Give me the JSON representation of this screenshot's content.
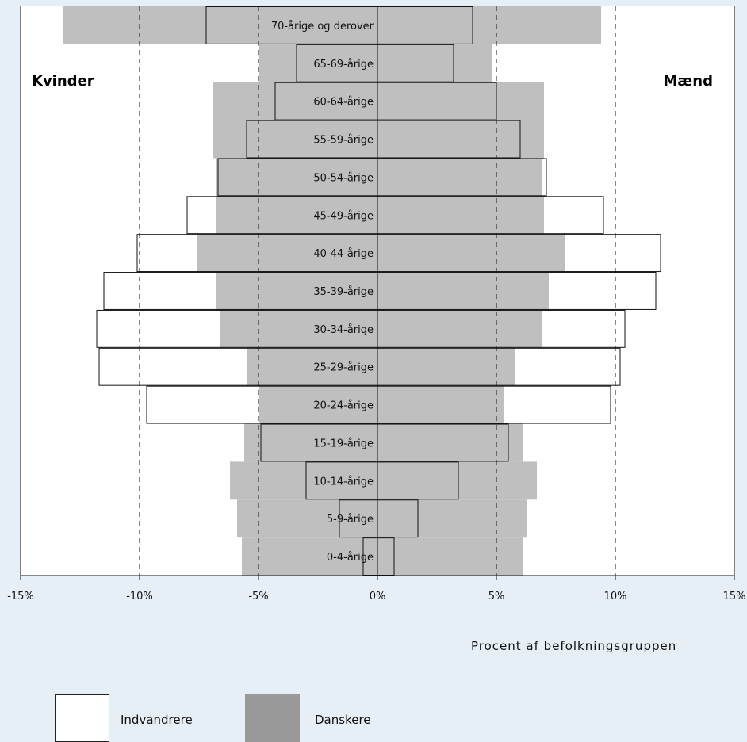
{
  "chart_data": {
    "type": "bar",
    "orientation": "horizontal",
    "layout": "population-pyramid",
    "categories": [
      "0-4-årige",
      "5-9-årige",
      "10-14-årige",
      "15-19-årige",
      "20-24-årige",
      "25-29-årige",
      "30-34-årige",
      "35-39-årige",
      "40-44-årige",
      "45-49-årige",
      "50-54-årige",
      "55-59-årige",
      "60-64-årige",
      "65-69-årige",
      "70-årige og derover"
    ],
    "series": [
      {
        "name": "Danskere",
        "color": "#bfbfbf",
        "women": [
          5.7,
          5.9,
          6.2,
          5.6,
          5.0,
          5.5,
          6.6,
          6.8,
          7.6,
          6.8,
          6.8,
          6.9,
          6.9,
          5.0,
          13.2
        ],
        "men": [
          6.1,
          6.3,
          6.7,
          6.1,
          5.3,
          5.8,
          6.9,
          7.2,
          7.9,
          7.0,
          6.9,
          7.0,
          7.0,
          4.8,
          9.4
        ]
      },
      {
        "name": "Indvandrere",
        "color": "#ffffff",
        "women": [
          0.6,
          1.6,
          3.0,
          4.9,
          9.7,
          11.7,
          11.8,
          11.5,
          10.1,
          8.0,
          6.7,
          5.5,
          4.3,
          3.4,
          7.2
        ],
        "men": [
          0.7,
          1.7,
          3.4,
          5.5,
          9.8,
          10.2,
          10.4,
          11.7,
          11.9,
          9.5,
          7.1,
          6.0,
          5.0,
          3.2,
          4.0
        ]
      }
    ],
    "left_label": "Kvinder",
    "right_label": "Mænd",
    "xlabel": "Procent af befolkningsgruppen",
    "xlim": [
      -15,
      15
    ],
    "x_ticks": [
      -15,
      -10,
      -5,
      0,
      5,
      10,
      15
    ],
    "x_tick_labels": [
      "-15%",
      "-10%",
      "-5%",
      "0%",
      "5%",
      "10%",
      "15%"
    ],
    "dashed_gridlines": [
      -10,
      -5,
      5,
      10
    ],
    "legend": {
      "placement": "bottom-left",
      "items": [
        "Indvandrere",
        "Danskere"
      ],
      "swatch_colors": [
        "#ffffff",
        "#999999"
      ]
    }
  }
}
